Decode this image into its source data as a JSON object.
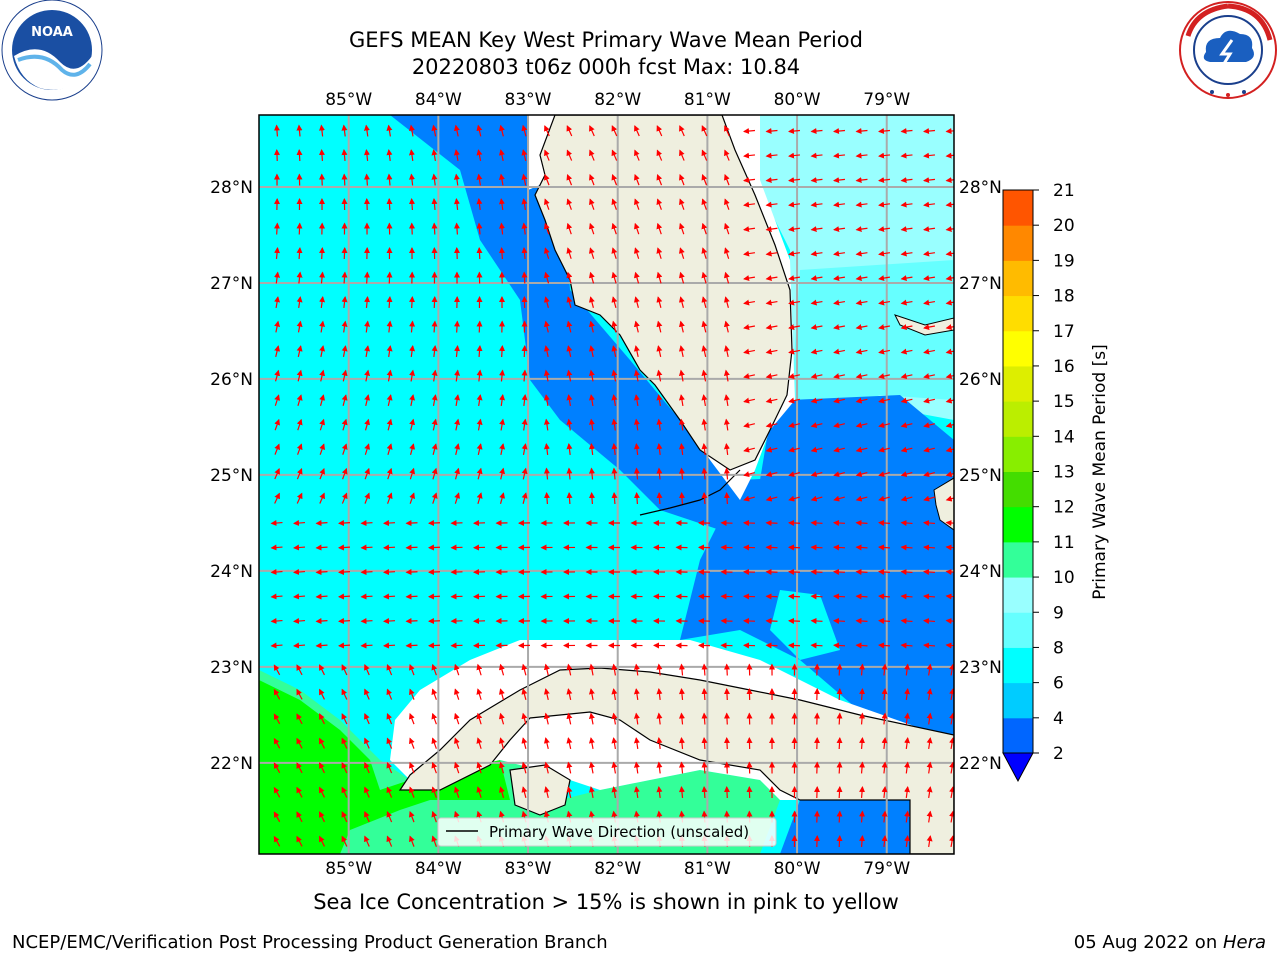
{
  "header": {
    "title_line1": "GEFS MEAN Key West Primary Wave Mean Period",
    "title_line2": "20220803 t06z 000h fcst   Max: 10.84"
  },
  "logos": {
    "left": {
      "text": "NOAA",
      "ring_text": "NATIONAL OCEANIC AND ATMOSPHERIC ADMINISTRATION · U.S. DEPARTMENT OF COMMERCE",
      "icon": "noaa-logo-icon"
    },
    "right": {
      "ring_text": "NATIONAL WEATHER SERVICE",
      "icon": "nws-logo-icon"
    }
  },
  "map": {
    "lon_labels": [
      "85°W",
      "84°W",
      "83°W",
      "82°W",
      "81°W",
      "80°W",
      "79°W"
    ],
    "lon_values": [
      -85,
      -84,
      -83,
      -82,
      -81,
      -80,
      -79
    ],
    "lat_labels": [
      "28°N",
      "27°N",
      "26°N",
      "25°N",
      "24°N",
      "23°N",
      "22°N"
    ],
    "lat_values": [
      28,
      27,
      26,
      25,
      24,
      23,
      22
    ],
    "extent": {
      "lon_min": -86,
      "lon_max": -78.25,
      "lat_min": 21.05,
      "lat_max": 28.75
    },
    "legend_label": "Primary Wave Direction (unscaled)",
    "arrow_color": "#ff0000"
  },
  "colorbar": {
    "label": "Primary Wave Mean Period [s]",
    "ticks": [
      "2",
      "4",
      "6",
      "8",
      "9",
      "10",
      "11",
      "12",
      "13",
      "14",
      "15",
      "16",
      "17",
      "18",
      "19",
      "20",
      "21"
    ],
    "colors": [
      "#0066ff",
      "#00ccff",
      "#00ffff",
      "#66ffff",
      "#99ffff",
      "#33ff99",
      "#00ff00",
      "#44dd00",
      "#88ee00",
      "#bbee00",
      "#ddee00",
      "#ffff00",
      "#ffdd00",
      "#ffbb00",
      "#ff8800",
      "#ff5500",
      "#ff2200",
      "#ff0000"
    ],
    "extend_color": "#0000ff"
  },
  "subtitle": "Sea Ice Concentration > 15% is shown in pink to yellow",
  "footer": {
    "left": "NCEP/EMC/Verification Post Processing Product Generation Branch",
    "right_prefix": "05 Aug 2022 on ",
    "right_italic": "Hera"
  }
}
